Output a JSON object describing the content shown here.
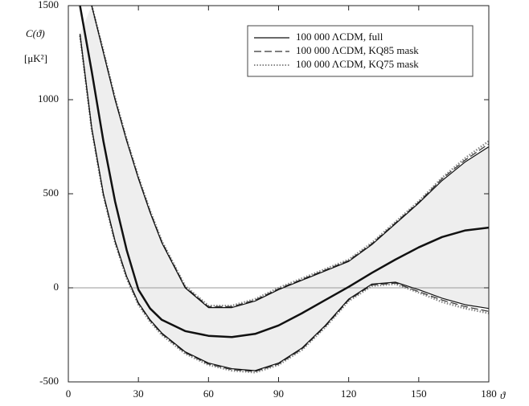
{
  "chart_data": {
    "type": "line",
    "y_label": "C(ϑ)",
    "y_unit": "[μK²]",
    "x_label": "ϑ",
    "x": [
      5,
      10,
      15,
      20,
      25,
      30,
      35,
      40,
      50,
      60,
      70,
      80,
      90,
      100,
      110,
      120,
      130,
      140,
      150,
      160,
      170,
      180
    ],
    "series": [
      {
        "name": "100 000 ΛCDM, full",
        "color": "#111111",
        "style": "solid",
        "values": [
          1500,
          1150,
          780,
          460,
          200,
          -10,
          -110,
          -170,
          -230,
          -255,
          -262,
          -245,
          -200,
          -135,
          -65,
          5,
          80,
          150,
          215,
          270,
          305,
          320
        ],
        "upper": [
          null,
          1500,
          1250,
          1000,
          780,
          580,
          400,
          240,
          0,
          -105,
          -105,
          -70,
          -10,
          40,
          90,
          140,
          230,
          340,
          450,
          570,
          670,
          750
        ],
        "lower": [
          1350,
          850,
          500,
          250,
          60,
          -80,
          -170,
          -240,
          -340,
          -400,
          -430,
          -440,
          -400,
          -320,
          -200,
          -60,
          20,
          30,
          -10,
          -55,
          -90,
          -110
        ]
      },
      {
        "name": "100 000 ΛCDM, KQ85 mask",
        "color": "#333333",
        "style": "dashed",
        "upper": [
          null,
          1500,
          1255,
          1005,
          785,
          585,
          405,
          245,
          5,
          -100,
          -100,
          -65,
          -5,
          45,
          95,
          145,
          235,
          345,
          455,
          580,
          680,
          765
        ],
        "lower": [
          1345,
          845,
          495,
          245,
          55,
          -85,
          -175,
          -245,
          -345,
          -405,
          -435,
          -445,
          -405,
          -325,
          -205,
          -65,
          15,
          25,
          -20,
          -65,
          -100,
          -125
        ]
      },
      {
        "name": "100 000 ΛCDM, KQ75 mask",
        "color": "#888888",
        "style": "dotted",
        "upper": [
          null,
          1500,
          1260,
          1010,
          790,
          590,
          410,
          250,
          10,
          -95,
          -95,
          -60,
          0,
          50,
          100,
          150,
          240,
          350,
          460,
          585,
          690,
          780
        ],
        "lower": [
          1340,
          840,
          490,
          240,
          50,
          -90,
          -180,
          -250,
          -350,
          -410,
          -440,
          -450,
          -410,
          -330,
          -210,
          -70,
          10,
          20,
          -25,
          -75,
          -110,
          -135
        ]
      }
    ],
    "xlim": [
      0,
      180
    ],
    "xticks": [
      0,
      30,
      60,
      90,
      120,
      150,
      180
    ],
    "ylim": [
      -500,
      1500
    ],
    "yticks": [
      -500,
      0,
      500,
      1000,
      1500
    ],
    "band_color": "#eeeeee",
    "legend": "upper-right"
  }
}
